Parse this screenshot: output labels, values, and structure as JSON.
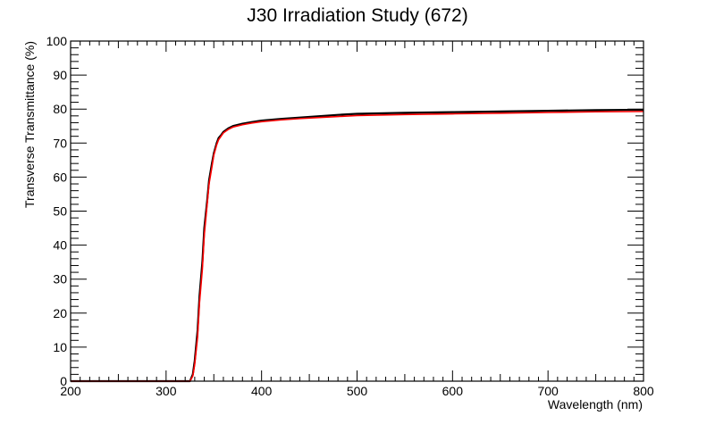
{
  "chart_data": {
    "type": "line",
    "title": "J30 Irradiation Study (672)",
    "xlabel": "Wavelength (nm)",
    "ylabel": "Transverse Transmittance (%)",
    "xlim": [
      200,
      800
    ],
    "ylim": [
      0,
      100
    ],
    "x_ticks": [
      "200",
      "300",
      "400",
      "500",
      "600",
      "700",
      "800"
    ],
    "y_ticks": [
      "0",
      "10",
      "20",
      "30",
      "40",
      "50",
      "60",
      "70",
      "80",
      "90",
      "100"
    ],
    "grid": false,
    "series": [
      {
        "color": "#000000",
        "x": [
          200,
          250,
          300,
          320,
          325,
          328,
          330,
          333,
          335,
          338,
          340,
          343,
          345,
          348,
          350,
          353,
          355,
          358,
          360,
          365,
          370,
          380,
          390,
          400,
          420,
          440,
          460,
          480,
          500,
          550,
          600,
          650,
          700,
          750,
          800
        ],
        "y": [
          0,
          0,
          0,
          0,
          0,
          2,
          6,
          15,
          25,
          35,
          45,
          53,
          59,
          64,
          67,
          70,
          71.5,
          72.5,
          73.3,
          74.3,
          75,
          75.7,
          76.2,
          76.6,
          77.1,
          77.5,
          77.9,
          78.3,
          78.6,
          78.9,
          79.1,
          79.3,
          79.5,
          79.7,
          79.8
        ]
      },
      {
        "color": "#ff0000",
        "x": [
          200,
          250,
          300,
          320,
          325,
          328,
          330,
          333,
          335,
          338,
          340,
          343,
          345,
          348,
          350,
          353,
          355,
          358,
          360,
          365,
          370,
          380,
          390,
          400,
          420,
          440,
          460,
          480,
          500,
          550,
          600,
          650,
          700,
          750,
          800
        ],
        "y": [
          0,
          0,
          0,
          0,
          0,
          1.5,
          5,
          13,
          23,
          33,
          43,
          52,
          58,
          63,
          66.5,
          69.5,
          71,
          72.2,
          73,
          74,
          74.7,
          75.4,
          75.9,
          76.3,
          76.8,
          77.2,
          77.5,
          77.8,
          78.1,
          78.4,
          78.6,
          78.8,
          79,
          79.2,
          79.3
        ]
      }
    ]
  }
}
